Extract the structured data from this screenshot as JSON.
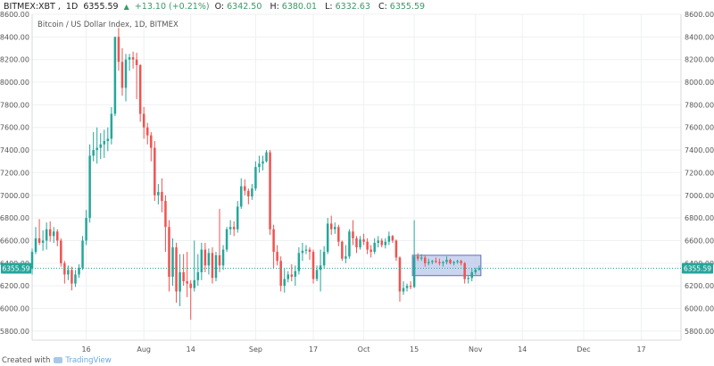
{
  "header": {
    "symbol": "BITMEX:XBT",
    "interval": "1D",
    "last": "6355.59",
    "change": "+13.10 (+0.21%)",
    "o_label": "O:",
    "o_value": "6342.50",
    "h_label": "H:",
    "h_value": "6380.01",
    "l_label": "L:",
    "l_value": "6332.63",
    "c_label": "C:",
    "c_value": "6355.59"
  },
  "footer": {
    "created_with": "Created with",
    "brand": "TradingView"
  },
  "colors": {
    "up": "#26a69a",
    "down": "#ef5350",
    "current_line": "#26a69a",
    "box_fill": "#b7c3e8",
    "box_stroke": "#5a6fbf"
  },
  "chart_data": {
    "type": "candlestick",
    "title": "Bitcoin / US Dollar Index, 1D, BITMEX",
    "ylim": [
      5720,
      8600
    ],
    "y_ticks": [
      "8600.00",
      "8400.00",
      "8200.00",
      "8000.00",
      "7800.00",
      "7600.00",
      "7400.00",
      "7200.00",
      "7000.00",
      "6800.00",
      "6600.00",
      "6400.00",
      "6200.00",
      "6000.00",
      "5800.00"
    ],
    "y_tick_values": [
      8600,
      8400,
      8200,
      8000,
      7800,
      7600,
      7400,
      7200,
      7000,
      6800,
      6600,
      6400,
      6200,
      6000,
      5800
    ],
    "x_ticks": [
      {
        "label": "16",
        "date": "2018-07-16"
      },
      {
        "label": "Aug",
        "date": "2018-08-01"
      },
      {
        "label": "14",
        "date": "2018-08-14"
      },
      {
        "label": "Sep",
        "date": "2018-09-01"
      },
      {
        "label": "17",
        "date": "2018-09-17"
      },
      {
        "label": "Oct",
        "date": "2018-10-01"
      },
      {
        "label": "15",
        "date": "2018-10-15"
      },
      {
        "label": "Nov",
        "date": "2018-11-01"
      },
      {
        "label": "14",
        "date": "2018-11-14"
      },
      {
        "label": "Dec",
        "date": "2018-12-01"
      },
      {
        "label": "17",
        "date": "2018-12-17"
      }
    ],
    "x_range": [
      "2018-07-01",
      "2018-12-28"
    ],
    "current_price": 6355.59,
    "current_price_label": "6355.59",
    "highlight_box": {
      "start": "2018-10-15",
      "end": "2018-11-02",
      "low": 6290,
      "high": 6470
    },
    "candles": [
      {
        "date": "2018-07-01",
        "o": 6350,
        "h": 6530,
        "l": 6300,
        "c": 6500
      },
      {
        "date": "2018-07-02",
        "o": 6500,
        "h": 6720,
        "l": 6480,
        "c": 6620
      },
      {
        "date": "2018-07-03",
        "o": 6620,
        "h": 6790,
        "l": 6560,
        "c": 6580
      },
      {
        "date": "2018-07-04",
        "o": 6580,
        "h": 6690,
        "l": 6510,
        "c": 6600
      },
      {
        "date": "2018-07-05",
        "o": 6600,
        "h": 6760,
        "l": 6520,
        "c": 6700
      },
      {
        "date": "2018-07-06",
        "o": 6700,
        "h": 6770,
        "l": 6590,
        "c": 6640
      },
      {
        "date": "2018-07-07",
        "o": 6640,
        "h": 6720,
        "l": 6580,
        "c": 6680
      },
      {
        "date": "2018-07-08",
        "o": 6680,
        "h": 6700,
        "l": 6550,
        "c": 6600
      },
      {
        "date": "2018-07-09",
        "o": 6600,
        "h": 6620,
        "l": 6370,
        "c": 6400
      },
      {
        "date": "2018-07-10",
        "o": 6400,
        "h": 6420,
        "l": 6220,
        "c": 6300
      },
      {
        "date": "2018-07-11",
        "o": 6300,
        "h": 6380,
        "l": 6250,
        "c": 6340
      },
      {
        "date": "2018-07-12",
        "o": 6340,
        "h": 6370,
        "l": 6160,
        "c": 6220
      },
      {
        "date": "2018-07-13",
        "o": 6220,
        "h": 6340,
        "l": 6190,
        "c": 6300
      },
      {
        "date": "2018-07-14",
        "o": 6300,
        "h": 6390,
        "l": 6270,
        "c": 6360
      },
      {
        "date": "2018-07-15",
        "o": 6360,
        "h": 6640,
        "l": 6340,
        "c": 6600
      },
      {
        "date": "2018-07-16",
        "o": 6600,
        "h": 6870,
        "l": 6560,
        "c": 6800
      },
      {
        "date": "2018-07-17",
        "o": 6800,
        "h": 7450,
        "l": 6760,
        "c": 7350
      },
      {
        "date": "2018-07-18",
        "o": 7350,
        "h": 7560,
        "l": 7300,
        "c": 7400
      },
      {
        "date": "2018-07-19",
        "o": 7400,
        "h": 7600,
        "l": 7280,
        "c": 7420
      },
      {
        "date": "2018-07-20",
        "o": 7420,
        "h": 7550,
        "l": 7320,
        "c": 7450
      },
      {
        "date": "2018-07-21",
        "o": 7450,
        "h": 7580,
        "l": 7330,
        "c": 7480
      },
      {
        "date": "2018-07-22",
        "o": 7480,
        "h": 7600,
        "l": 7390,
        "c": 7500
      },
      {
        "date": "2018-07-23",
        "o": 7500,
        "h": 7780,
        "l": 7450,
        "c": 7720
      },
      {
        "date": "2018-07-24",
        "o": 7720,
        "h": 8400,
        "l": 7700,
        "c": 8400
      },
      {
        "date": "2018-07-25",
        "o": 8400,
        "h": 8480,
        "l": 8100,
        "c": 8180
      },
      {
        "date": "2018-07-26",
        "o": 8180,
        "h": 8300,
        "l": 7880,
        "c": 7950
      },
      {
        "date": "2018-07-27",
        "o": 7950,
        "h": 8250,
        "l": 7830,
        "c": 8200
      },
      {
        "date": "2018-07-28",
        "o": 8200,
        "h": 8250,
        "l": 8100,
        "c": 8220
      },
      {
        "date": "2018-07-29",
        "o": 8220,
        "h": 8270,
        "l": 8120,
        "c": 8200
      },
      {
        "date": "2018-07-30",
        "o": 8200,
        "h": 8260,
        "l": 7850,
        "c": 8150
      },
      {
        "date": "2018-07-31",
        "o": 8150,
        "h": 8160,
        "l": 7650,
        "c": 7720
      },
      {
        "date": "2018-08-01",
        "o": 7720,
        "h": 7780,
        "l": 7500,
        "c": 7600
      },
      {
        "date": "2018-08-02",
        "o": 7600,
        "h": 7640,
        "l": 7450,
        "c": 7530
      },
      {
        "date": "2018-08-03",
        "o": 7530,
        "h": 7560,
        "l": 7300,
        "c": 7420
      },
      {
        "date": "2018-08-04",
        "o": 7420,
        "h": 7480,
        "l": 6950,
        "c": 7000
      },
      {
        "date": "2018-08-05",
        "o": 7000,
        "h": 7100,
        "l": 6920,
        "c": 7030
      },
      {
        "date": "2018-08-06",
        "o": 7030,
        "h": 7150,
        "l": 6850,
        "c": 6950
      },
      {
        "date": "2018-08-07",
        "o": 6950,
        "h": 7000,
        "l": 6500,
        "c": 6720
      },
      {
        "date": "2018-08-08",
        "o": 6720,
        "h": 6780,
        "l": 6150,
        "c": 6280
      },
      {
        "date": "2018-08-09",
        "o": 6280,
        "h": 6620,
        "l": 6200,
        "c": 6540
      },
      {
        "date": "2018-08-10",
        "o": 6540,
        "h": 6580,
        "l": 6050,
        "c": 6150
      },
      {
        "date": "2018-08-11",
        "o": 6150,
        "h": 6480,
        "l": 6020,
        "c": 6320
      },
      {
        "date": "2018-08-12",
        "o": 6320,
        "h": 6480,
        "l": 6200,
        "c": 6240
      },
      {
        "date": "2018-08-13",
        "o": 6240,
        "h": 6500,
        "l": 6100,
        "c": 6220
      },
      {
        "date": "2018-08-14",
        "o": 6220,
        "h": 6250,
        "l": 5900,
        "c": 6180
      },
      {
        "date": "2018-08-15",
        "o": 6180,
        "h": 6600,
        "l": 6150,
        "c": 6250
      },
      {
        "date": "2018-08-16",
        "o": 6250,
        "h": 6480,
        "l": 6200,
        "c": 6320
      },
      {
        "date": "2018-08-17",
        "o": 6320,
        "h": 6580,
        "l": 6250,
        "c": 6520
      },
      {
        "date": "2018-08-18",
        "o": 6520,
        "h": 6580,
        "l": 6320,
        "c": 6380
      },
      {
        "date": "2018-08-19",
        "o": 6380,
        "h": 6530,
        "l": 6300,
        "c": 6490
      },
      {
        "date": "2018-08-20",
        "o": 6490,
        "h": 6540,
        "l": 6220,
        "c": 6270
      },
      {
        "date": "2018-08-21",
        "o": 6270,
        "h": 6500,
        "l": 6240,
        "c": 6470
      },
      {
        "date": "2018-08-22",
        "o": 6470,
        "h": 6880,
        "l": 6320,
        "c": 6380
      },
      {
        "date": "2018-08-23",
        "o": 6380,
        "h": 6560,
        "l": 6340,
        "c": 6520
      },
      {
        "date": "2018-08-24",
        "o": 6520,
        "h": 6720,
        "l": 6500,
        "c": 6700
      },
      {
        "date": "2018-08-25",
        "o": 6700,
        "h": 6780,
        "l": 6650,
        "c": 6720
      },
      {
        "date": "2018-08-26",
        "o": 6720,
        "h": 6770,
        "l": 6640,
        "c": 6700
      },
      {
        "date": "2018-08-27",
        "o": 6700,
        "h": 6950,
        "l": 6670,
        "c": 6900
      },
      {
        "date": "2018-08-28",
        "o": 6900,
        "h": 7150,
        "l": 6880,
        "c": 7080
      },
      {
        "date": "2018-08-29",
        "o": 7080,
        "h": 7140,
        "l": 7000,
        "c": 7040
      },
      {
        "date": "2018-08-30",
        "o": 7040,
        "h": 7060,
        "l": 6920,
        "c": 6990
      },
      {
        "date": "2018-08-31",
        "o": 6990,
        "h": 7100,
        "l": 6960,
        "c": 7060
      },
      {
        "date": "2018-09-01",
        "o": 7060,
        "h": 7300,
        "l": 7040,
        "c": 7250
      },
      {
        "date": "2018-09-02",
        "o": 7250,
        "h": 7350,
        "l": 7200,
        "c": 7280
      },
      {
        "date": "2018-09-03",
        "o": 7280,
        "h": 7350,
        "l": 7220,
        "c": 7300
      },
      {
        "date": "2018-09-04",
        "o": 7300,
        "h": 7400,
        "l": 7290,
        "c": 7380
      },
      {
        "date": "2018-09-05",
        "o": 7380,
        "h": 7400,
        "l": 6650,
        "c": 6700
      },
      {
        "date": "2018-09-06",
        "o": 6700,
        "h": 6740,
        "l": 6350,
        "c": 6500
      },
      {
        "date": "2018-09-07",
        "o": 6500,
        "h": 6560,
        "l": 6380,
        "c": 6420
      },
      {
        "date": "2018-09-08",
        "o": 6420,
        "h": 6460,
        "l": 6150,
        "c": 6200
      },
      {
        "date": "2018-09-09",
        "o": 6200,
        "h": 6350,
        "l": 6140,
        "c": 6260
      },
      {
        "date": "2018-09-10",
        "o": 6260,
        "h": 6330,
        "l": 6230,
        "c": 6300
      },
      {
        "date": "2018-09-11",
        "o": 6300,
        "h": 6390,
        "l": 6240,
        "c": 6280
      },
      {
        "date": "2018-09-12",
        "o": 6280,
        "h": 6380,
        "l": 6200,
        "c": 6330
      },
      {
        "date": "2018-09-13",
        "o": 6330,
        "h": 6540,
        "l": 6300,
        "c": 6490
      },
      {
        "date": "2018-09-14",
        "o": 6490,
        "h": 6580,
        "l": 6420,
        "c": 6510
      },
      {
        "date": "2018-09-15",
        "o": 6510,
        "h": 6560,
        "l": 6480,
        "c": 6520
      },
      {
        "date": "2018-09-16",
        "o": 6520,
        "h": 6540,
        "l": 6430,
        "c": 6500
      },
      {
        "date": "2018-09-17",
        "o": 6500,
        "h": 6520,
        "l": 6220,
        "c": 6260
      },
      {
        "date": "2018-09-18",
        "o": 6260,
        "h": 6380,
        "l": 6240,
        "c": 6340
      },
      {
        "date": "2018-09-19",
        "o": 6340,
        "h": 6520,
        "l": 6150,
        "c": 6380
      },
      {
        "date": "2018-09-20",
        "o": 6380,
        "h": 6550,
        "l": 6350,
        "c": 6500
      },
      {
        "date": "2018-09-21",
        "o": 6500,
        "h": 6800,
        "l": 6480,
        "c": 6750
      },
      {
        "date": "2018-09-22",
        "o": 6750,
        "h": 6820,
        "l": 6650,
        "c": 6700
      },
      {
        "date": "2018-09-23",
        "o": 6700,
        "h": 6760,
        "l": 6660,
        "c": 6720
      },
      {
        "date": "2018-09-24",
        "o": 6720,
        "h": 6740,
        "l": 6550,
        "c": 6590
      },
      {
        "date": "2018-09-25",
        "o": 6590,
        "h": 6600,
        "l": 6420,
        "c": 6440
      },
      {
        "date": "2018-09-26",
        "o": 6440,
        "h": 6560,
        "l": 6400,
        "c": 6460
      },
      {
        "date": "2018-09-27",
        "o": 6460,
        "h": 6700,
        "l": 6440,
        "c": 6680
      },
      {
        "date": "2018-09-28",
        "o": 6680,
        "h": 6780,
        "l": 6560,
        "c": 6620
      },
      {
        "date": "2018-09-29",
        "o": 6620,
        "h": 6640,
        "l": 6490,
        "c": 6540
      },
      {
        "date": "2018-09-30",
        "o": 6540,
        "h": 6640,
        "l": 6520,
        "c": 6610
      },
      {
        "date": "2018-10-01",
        "o": 6610,
        "h": 6660,
        "l": 6560,
        "c": 6590
      },
      {
        "date": "2018-10-02",
        "o": 6590,
        "h": 6620,
        "l": 6480,
        "c": 6520
      },
      {
        "date": "2018-10-03",
        "o": 6520,
        "h": 6560,
        "l": 6450,
        "c": 6500
      },
      {
        "date": "2018-10-04",
        "o": 6500,
        "h": 6620,
        "l": 6480,
        "c": 6580
      },
      {
        "date": "2018-10-05",
        "o": 6580,
        "h": 6640,
        "l": 6540,
        "c": 6600
      },
      {
        "date": "2018-10-06",
        "o": 6600,
        "h": 6620,
        "l": 6540,
        "c": 6560
      },
      {
        "date": "2018-10-07",
        "o": 6560,
        "h": 6620,
        "l": 6530,
        "c": 6590
      },
      {
        "date": "2018-10-08",
        "o": 6590,
        "h": 6680,
        "l": 6560,
        "c": 6640
      },
      {
        "date": "2018-10-09",
        "o": 6640,
        "h": 6650,
        "l": 6580,
        "c": 6600
      },
      {
        "date": "2018-10-10",
        "o": 6600,
        "h": 6610,
        "l": 6420,
        "c": 6450
      },
      {
        "date": "2018-10-11",
        "o": 6450,
        "h": 6460,
        "l": 6060,
        "c": 6150
      },
      {
        "date": "2018-10-12",
        "o": 6150,
        "h": 6240,
        "l": 6120,
        "c": 6180
      },
      {
        "date": "2018-10-13",
        "o": 6180,
        "h": 6220,
        "l": 6150,
        "c": 6200
      },
      {
        "date": "2018-10-14",
        "o": 6200,
        "h": 6240,
        "l": 6170,
        "c": 6190
      },
      {
        "date": "2018-10-15",
        "o": 6190,
        "h": 6780,
        "l": 6180,
        "c": 6460
      },
      {
        "date": "2018-10-16",
        "o": 6460,
        "h": 6490,
        "l": 6420,
        "c": 6440
      },
      {
        "date": "2018-10-17",
        "o": 6440,
        "h": 6480,
        "l": 6420,
        "c": 6450
      },
      {
        "date": "2018-10-18",
        "o": 6450,
        "h": 6470,
        "l": 6370,
        "c": 6400
      },
      {
        "date": "2018-10-19",
        "o": 6400,
        "h": 6440,
        "l": 6380,
        "c": 6410
      },
      {
        "date": "2018-10-20",
        "o": 6410,
        "h": 6430,
        "l": 6390,
        "c": 6420
      },
      {
        "date": "2018-10-21",
        "o": 6420,
        "h": 6450,
        "l": 6400,
        "c": 6410
      },
      {
        "date": "2018-10-22",
        "o": 6410,
        "h": 6440,
        "l": 6380,
        "c": 6400
      },
      {
        "date": "2018-10-23",
        "o": 6400,
        "h": 6420,
        "l": 6370,
        "c": 6410
      },
      {
        "date": "2018-10-24",
        "o": 6410,
        "h": 6460,
        "l": 6390,
        "c": 6430
      },
      {
        "date": "2018-10-25",
        "o": 6430,
        "h": 6440,
        "l": 6390,
        "c": 6400
      },
      {
        "date": "2018-10-26",
        "o": 6400,
        "h": 6420,
        "l": 6380,
        "c": 6410
      },
      {
        "date": "2018-10-27",
        "o": 6410,
        "h": 6430,
        "l": 6395,
        "c": 6420
      },
      {
        "date": "2018-10-28",
        "o": 6420,
        "h": 6430,
        "l": 6380,
        "c": 6400
      },
      {
        "date": "2018-10-29",
        "o": 6400,
        "h": 6410,
        "l": 6220,
        "c": 6260
      },
      {
        "date": "2018-10-30",
        "o": 6260,
        "h": 6290,
        "l": 6220,
        "c": 6270
      },
      {
        "date": "2018-10-31",
        "o": 6270,
        "h": 6350,
        "l": 6240,
        "c": 6320
      },
      {
        "date": "2018-11-01",
        "o": 6320,
        "h": 6360,
        "l": 6300,
        "c": 6342.5
      },
      {
        "date": "2018-11-02",
        "o": 6342.5,
        "h": 6380.01,
        "l": 6332.63,
        "c": 6355.59
      }
    ]
  }
}
